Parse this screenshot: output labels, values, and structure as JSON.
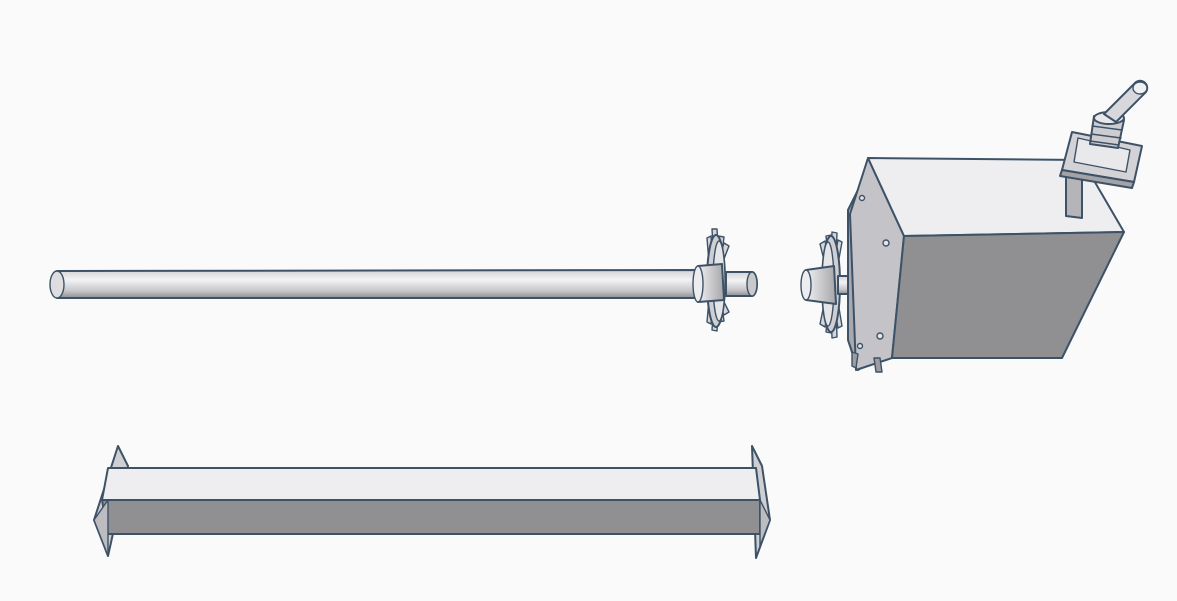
{
  "scene": {
    "objects": [
      {
        "name": "shaft-rod",
        "shape": "cylinder"
      },
      {
        "name": "shaft-gear",
        "shape": "gear"
      },
      {
        "name": "motor-gear",
        "shape": "gear"
      },
      {
        "name": "motor-box",
        "shape": "box"
      },
      {
        "name": "toggle-switch",
        "shape": "switch"
      },
      {
        "name": "rail-beam",
        "shape": "i-beam"
      }
    ],
    "colors": {
      "background": "#fafafa",
      "edge": "#3d5266",
      "face_light": "#eeeef0",
      "face_mid": "#b9b9bd",
      "face_dark": "#8f8f92"
    }
  }
}
